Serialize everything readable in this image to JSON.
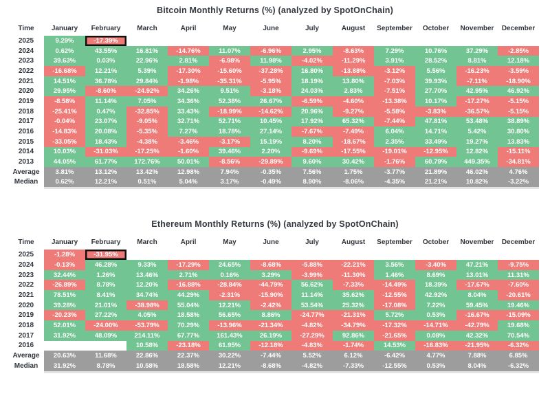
{
  "colors": {
    "positive_cell": "#72c592",
    "negative_cell": "#ef7b78",
    "summary_cell": "#9d9d9d",
    "cell_text": "#ffffff",
    "header_text": "#2f343a",
    "highlight_border": "#111111"
  },
  "chart_data": [
    {
      "type": "heatmap",
      "title": "Bitcoin Monthly Returns (%) (analyzed by SpotOnChain)",
      "row_header": "Time",
      "value_suffix": "%",
      "legend_note": "green = positive month, red = negative month, gray = summary rows",
      "columns": [
        "January",
        "February",
        "March",
        "April",
        "May",
        "June",
        "July",
        "August",
        "September",
        "October",
        "November",
        "December"
      ],
      "highlight": {
        "row": "2025",
        "column": "February"
      },
      "rows": [
        {
          "label": "2025",
          "summary": false,
          "values": [
            9.29,
            -17.39,
            null,
            null,
            null,
            null,
            null,
            null,
            null,
            null,
            null,
            null
          ]
        },
        {
          "label": "2024",
          "summary": false,
          "values": [
            0.62,
            43.55,
            16.81,
            -14.76,
            11.07,
            -6.96,
            2.95,
            -8.63,
            7.29,
            10.76,
            37.29,
            -2.85
          ]
        },
        {
          "label": "2023",
          "summary": false,
          "values": [
            39.63,
            0.03,
            22.96,
            2.81,
            -6.98,
            11.98,
            -4.02,
            -11.29,
            3.91,
            28.52,
            8.81,
            12.18
          ]
        },
        {
          "label": "2022",
          "summary": false,
          "values": [
            -16.68,
            12.21,
            5.39,
            -17.3,
            -15.6,
            -37.28,
            16.8,
            -13.88,
            -3.12,
            5.56,
            -16.23,
            -3.59
          ]
        },
        {
          "label": "2021",
          "summary": false,
          "values": [
            14.51,
            36.78,
            29.84,
            -1.98,
            -35.31,
            -5.95,
            18.19,
            13.8,
            -7.03,
            39.93,
            -7.11,
            -18.9
          ]
        },
        {
          "label": "2020",
          "summary": false,
          "values": [
            29.95,
            -8.6,
            -24.92,
            34.26,
            9.51,
            -3.18,
            24.03,
            2.83,
            -7.51,
            27.7,
            42.95,
            46.92
          ]
        },
        {
          "label": "2019",
          "summary": false,
          "values": [
            -8.58,
            11.14,
            7.05,
            34.36,
            52.38,
            26.67,
            -6.59,
            -4.6,
            -13.38,
            10.17,
            -17.27,
            -5.15
          ]
        },
        {
          "label": "2018",
          "summary": false,
          "values": [
            -25.41,
            0.47,
            -32.85,
            33.43,
            -18.99,
            -14.62,
            20.96,
            -9.27,
            -5.58,
            -3.83,
            -36.57,
            -5.15
          ]
        },
        {
          "label": "2017",
          "summary": false,
          "values": [
            -0.04,
            23.07,
            -9.05,
            32.71,
            52.71,
            10.45,
            17.92,
            65.32,
            -7.44,
            47.81,
            53.48,
            38.89
          ]
        },
        {
          "label": "2016",
          "summary": false,
          "values": [
            -14.83,
            20.08,
            -5.35,
            7.27,
            18.78,
            27.14,
            -7.67,
            -7.49,
            6.04,
            14.71,
            5.42,
            30.8
          ]
        },
        {
          "label": "2015",
          "summary": false,
          "values": [
            -33.05,
            18.43,
            -4.38,
            -3.46,
            -3.17,
            15.19,
            8.2,
            -18.67,
            2.35,
            33.49,
            19.27,
            13.83
          ]
        },
        {
          "label": "2014",
          "summary": false,
          "values": [
            10.03,
            -31.03,
            -17.25,
            -1.6,
            39.46,
            2.2,
            -9.69,
            -17.55,
            -19.01,
            -12.95,
            12.82,
            -15.11
          ]
        },
        {
          "label": "2013",
          "summary": false,
          "values": [
            44.05,
            61.77,
            172.76,
            50.01,
            -8.56,
            -29.89,
            9.6,
            30.42,
            -1.76,
            60.79,
            449.35,
            -34.81
          ]
        },
        {
          "label": "Average",
          "summary": true,
          "values": [
            3.81,
            13.12,
            13.42,
            12.98,
            7.94,
            -0.35,
            7.56,
            1.75,
            -3.77,
            21.89,
            46.02,
            4.76
          ]
        },
        {
          "label": "Median",
          "summary": true,
          "values": [
            0.62,
            12.21,
            0.51,
            5.04,
            3.17,
            -0.49,
            8.9,
            -8.06,
            -4.35,
            21.21,
            10.82,
            -3.22
          ]
        }
      ]
    },
    {
      "type": "heatmap",
      "title": "Ethereum Monthly Returns (%) (analyzed by SpotOnChain)",
      "row_header": "Time",
      "value_suffix": "%",
      "legend_note": "green = positive month, red = negative month, gray = summary rows",
      "columns": [
        "January",
        "February",
        "March",
        "April",
        "May",
        "June",
        "July",
        "August",
        "September",
        "October",
        "November",
        "December"
      ],
      "highlight": {
        "row": "2025",
        "column": "February"
      },
      "rows": [
        {
          "label": "2025",
          "summary": false,
          "values": [
            -1.28,
            -31.95,
            null,
            null,
            null,
            null,
            null,
            null,
            null,
            null,
            null,
            null
          ]
        },
        {
          "label": "2024",
          "summary": false,
          "values": [
            -0.13,
            46.28,
            9.33,
            -17.29,
            24.65,
            -8.68,
            -5.88,
            -22.21,
            3.56,
            -3.4,
            47.21,
            -9.75
          ]
        },
        {
          "label": "2023",
          "summary": false,
          "values": [
            32.44,
            1.26,
            13.46,
            2.71,
            0.16,
            3.29,
            -3.99,
            -11.3,
            1.46,
            8.69,
            13.01,
            11.31
          ]
        },
        {
          "label": "2022",
          "summary": false,
          "values": [
            -26.89,
            8.78,
            12.2,
            -16.88,
            -28.84,
            -44.79,
            56.62,
            -7.33,
            -14.49,
            18.39,
            -17.67,
            -7.6
          ]
        },
        {
          "label": "2021",
          "summary": false,
          "values": [
            78.51,
            8.41,
            34.74,
            44.29,
            -2.31,
            -15.9,
            11.14,
            35.62,
            -12.55,
            42.92,
            8.04,
            -20.61
          ]
        },
        {
          "label": "2020",
          "summary": false,
          "values": [
            39.28,
            21.01,
            -38.98,
            55.04,
            12.21,
            -2.42,
            53.54,
            25.32,
            -17.08,
            7.22,
            59.45,
            19.46
          ]
        },
        {
          "label": "2019",
          "summary": false,
          "values": [
            -20.23,
            27.22,
            4.05,
            18.58,
            56.65,
            8.86,
            -24.77,
            -21.31,
            5.72,
            0.53,
            -16.67,
            -15.09
          ]
        },
        {
          "label": "2018",
          "summary": false,
          "values": [
            52.01,
            -24.0,
            -53.79,
            70.29,
            -13.96,
            -21.34,
            -4.82,
            -34.79,
            -17.32,
            -14.71,
            -42.79,
            19.68
          ]
        },
        {
          "label": "2017",
          "summary": false,
          "values": [
            31.92,
            48.09,
            214.11,
            67.77,
            161.43,
            26.19,
            -27.29,
            92.86,
            -21.65,
            0.08,
            42.32,
            70.54
          ]
        },
        {
          "label": "2016",
          "summary": false,
          "values": [
            null,
            null,
            10.58,
            -23.18,
            61.95,
            -12.18,
            -4.83,
            -1.74,
            14.53,
            -16.83,
            -21.95,
            -6.32
          ]
        },
        {
          "label": "Average",
          "summary": true,
          "values": [
            20.63,
            11.68,
            22.86,
            22.37,
            30.22,
            -7.44,
            5.52,
            6.12,
            -6.42,
            4.77,
            7.88,
            6.85
          ]
        },
        {
          "label": "Median",
          "summary": true,
          "values": [
            31.92,
            8.78,
            10.58,
            18.58,
            12.21,
            -8.68,
            -4.82,
            -7.33,
            -12.55,
            0.53,
            8.04,
            -6.32
          ]
        }
      ]
    }
  ]
}
